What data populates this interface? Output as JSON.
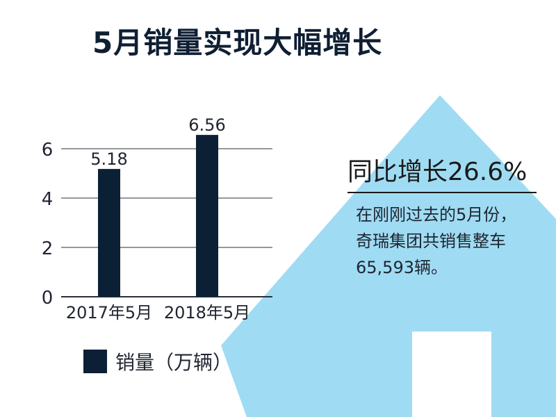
{
  "title": "5月销量实现大幅增长",
  "growth": {
    "headline": "同比增长26.6%",
    "description": "在刚刚过去的5月份，奇瑞集团共销售整车65,593辆。"
  },
  "colors": {
    "bar": "#0b2035",
    "arrow": "#9fdcf3",
    "gridline": "#2a2f38",
    "text": "#1f2430"
  },
  "chart_data": {
    "type": "bar",
    "categories": [
      "2017年5月",
      "2018年5月"
    ],
    "series": [
      {
        "name": "销量（万辆）",
        "values": [
          5.18,
          6.56
        ]
      }
    ],
    "data_labels": [
      "5.18",
      "6.56"
    ],
    "yticks": [
      0,
      2,
      4,
      6
    ],
    "ylim": [
      0,
      6
    ],
    "grid": true,
    "legend": "bottom-left"
  }
}
